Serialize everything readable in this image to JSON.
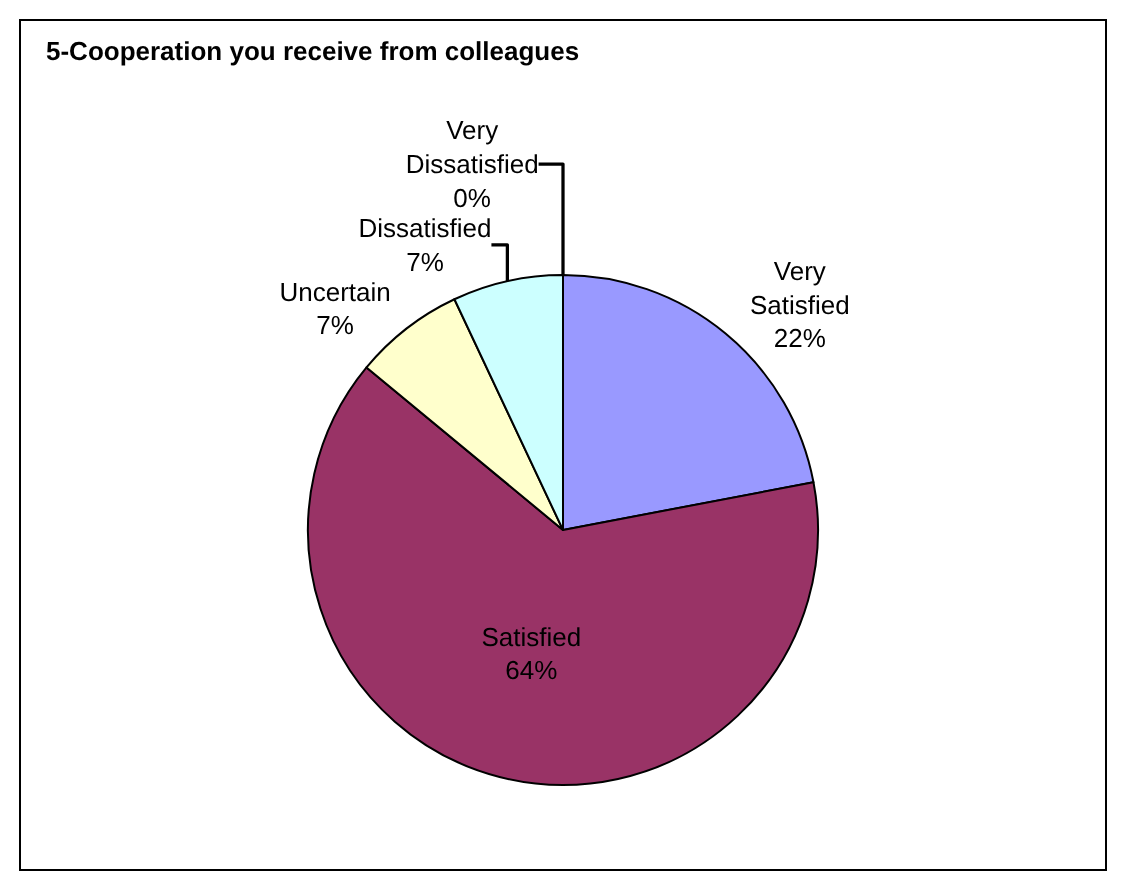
{
  "chart_data": {
    "type": "pie",
    "title": "5-Cooperation you receive from colleagues",
    "categories": [
      "Very Satisfied",
      "Satisfied",
      "Uncertain",
      "Dissatisfied",
      "Very Dissatisfied"
    ],
    "values": [
      22,
      64,
      7,
      7,
      0
    ],
    "value_labels": [
      "22%",
      "64%",
      "7%",
      "7%",
      "0%"
    ],
    "colors": [
      "#9999ff",
      "#993366",
      "#ffffcc",
      "#ccffff",
      "#660066"
    ],
    "legend": false
  }
}
